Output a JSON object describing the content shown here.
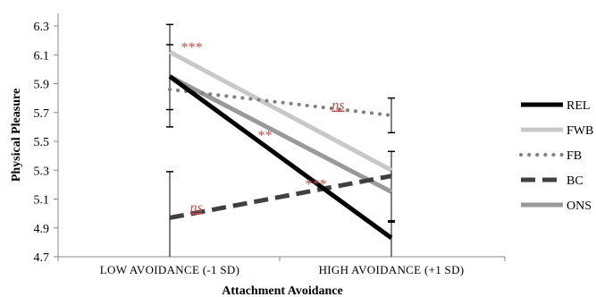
{
  "chart_data": {
    "type": "line",
    "xlabel": "Attachment Avoidance",
    "ylabel": "Physical Pleasure",
    "ylim": [
      4.7,
      6.3
    ],
    "yticks": [
      "6.3",
      "6.1",
      "5.9",
      "5.7",
      "5.5",
      "5.3",
      "5.1",
      "4.9",
      "4.7"
    ],
    "categories": [
      "LOW AVOIDANCE (-1 SD)",
      "HIGH AVOIDANCE (+1 SD)"
    ],
    "grid": false,
    "legend_position": "right",
    "series": [
      {
        "name": "Rel",
        "label": "REL",
        "values": [
          5.95,
          4.83
        ],
        "color": "#000000",
        "style": "solid",
        "width": 5
      },
      {
        "name": "FWB",
        "label": "FWB",
        "values": [
          6.12,
          5.3
        ],
        "color": "#c8c8c8",
        "style": "solid",
        "width": 5
      },
      {
        "name": "FB",
        "label": "FB",
        "values": [
          5.86,
          5.68
        ],
        "color": "#808080",
        "style": "dotted",
        "width": 4
      },
      {
        "name": "BC",
        "label": "BC",
        "values": [
          4.97,
          5.26
        ],
        "color": "#404040",
        "style": "dashed",
        "width": 5
      },
      {
        "name": "ONS",
        "label": "ONS",
        "values": [
          5.95,
          5.15
        ],
        "color": "#999999",
        "style": "solid",
        "width": 5
      }
    ],
    "error_bars": [
      {
        "category": 0,
        "low": 4.7,
        "high": 5.29
      },
      {
        "category": 0,
        "low": 5.6,
        "high": 6.31
      },
      {
        "category": 0,
        "low": 5.72,
        "high": 6.17
      },
      {
        "category": 1,
        "low": 4.7,
        "high": 4.95
      },
      {
        "category": 1,
        "low": 5.56,
        "high": 5.8
      },
      {
        "category": 1,
        "low": 4.94,
        "high": 5.43
      }
    ],
    "annotations": [
      {
        "text": "***",
        "category_pos": 0.1,
        "y": 6.12,
        "style": "plain"
      },
      {
        "text": "ns",
        "category_pos": 0.76,
        "y": 5.72,
        "style": "ns"
      },
      {
        "text": "**",
        "category_pos": 0.43,
        "y": 5.51,
        "style": "plain"
      },
      {
        "text": "***",
        "category_pos": 0.66,
        "y": 5.17,
        "style": "plain"
      },
      {
        "text": "ns",
        "category_pos": 0.12,
        "y": 5.01,
        "style": "ns"
      }
    ]
  }
}
